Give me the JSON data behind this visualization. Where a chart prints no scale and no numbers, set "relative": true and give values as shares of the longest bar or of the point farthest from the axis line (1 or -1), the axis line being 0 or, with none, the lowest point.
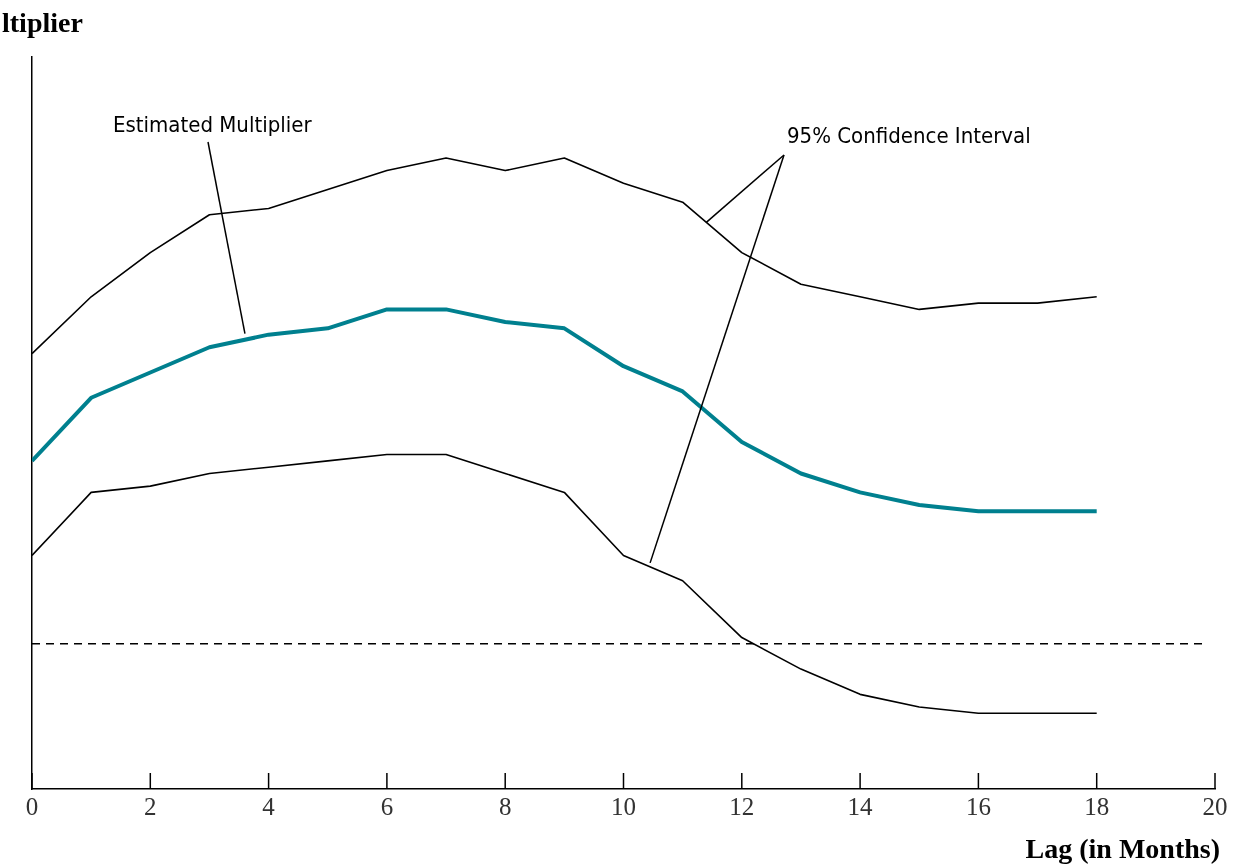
{
  "chart_data": {
    "type": "line",
    "xlabel": "Lag (in Months)",
    "ylabel": "ltiplier",
    "relative": true,
    "x": [
      0,
      1,
      2,
      3,
      4,
      5,
      6,
      7,
      8,
      9,
      10,
      11,
      12,
      13,
      14,
      15,
      16,
      17,
      18
    ],
    "series": [
      {
        "name": "95% Confidence Interval",
        "color": "#000000",
        "values": [
          0.69,
          0.78,
          0.85,
          0.91,
          0.92,
          0.95,
          0.98,
          1,
          0.98,
          1,
          0.96,
          0.93,
          0.85,
          0.8,
          0.78,
          0.76,
          0.77,
          0.77,
          0.78
        ]
      },
      {
        "name": "Estimated Multiplier",
        "color": "#00808f",
        "values": [
          0.52,
          0.62,
          0.66,
          0.7,
          0.72,
          0.73,
          0.76,
          0.76,
          0.74,
          0.73,
          0.67,
          0.63,
          0.55,
          0.5,
          0.47,
          0.45,
          0.44,
          0.44,
          0.44
        ]
      },
      {
        "color": "#000000",
        "values": [
          0.37,
          0.47,
          0.48,
          0.5,
          0.51,
          0.52,
          0.53,
          0.53,
          0.5,
          0.47,
          0.37,
          0.33,
          0.24,
          0.19,
          0.15,
          0.13,
          0.12,
          0.12,
          0.12
        ]
      }
    ],
    "xlim": [
      0,
      20
    ],
    "xticks": [
      0,
      2,
      4,
      6,
      8,
      10,
      12,
      14,
      16,
      18,
      20
    ],
    "ref_lines": [
      {
        "axis": "y",
        "value": 0.23,
        "color": "#000000",
        "line_style": "dashed"
      }
    ],
    "grid": false,
    "legend": false,
    "marker": "none"
  }
}
